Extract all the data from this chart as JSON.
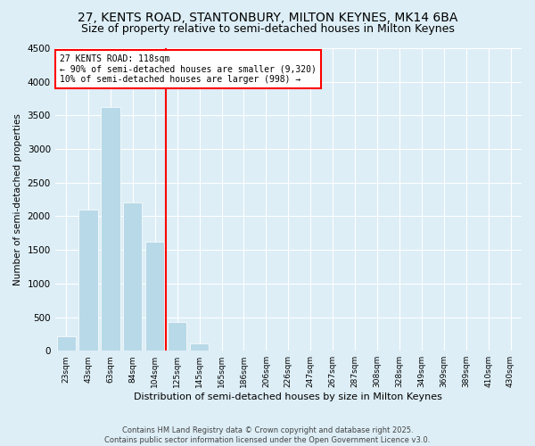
{
  "title": "27, KENTS ROAD, STANTONBURY, MILTON KEYNES, MK14 6BA",
  "subtitle": "Size of property relative to semi-detached houses in Milton Keynes",
  "xlabel": "Distribution of semi-detached houses by size in Milton Keynes",
  "ylabel": "Number of semi-detached properties",
  "categories": [
    "23sqm",
    "43sqm",
    "63sqm",
    "84sqm",
    "104sqm",
    "125sqm",
    "145sqm",
    "165sqm",
    "186sqm",
    "206sqm",
    "226sqm",
    "247sqm",
    "267sqm",
    "287sqm",
    "308sqm",
    "328sqm",
    "349sqm",
    "369sqm",
    "389sqm",
    "410sqm",
    "430sqm"
  ],
  "values": [
    220,
    2100,
    3620,
    2200,
    1620,
    430,
    110,
    0,
    0,
    0,
    0,
    0,
    0,
    0,
    0,
    0,
    0,
    0,
    0,
    0,
    0
  ],
  "bar_color": "#b8d9e8",
  "vline_x": 4.5,
  "vline_color": "red",
  "annotation_title": "27 KENTS ROAD: 118sqm",
  "annotation_line1": "← 90% of semi-detached houses are smaller (9,320)",
  "annotation_line2": "10% of semi-detached houses are larger (998) →",
  "ylim": [
    0,
    4500
  ],
  "yticks": [
    0,
    500,
    1000,
    1500,
    2000,
    2500,
    3000,
    3500,
    4000,
    4500
  ],
  "footer_line1": "Contains HM Land Registry data © Crown copyright and database right 2025.",
  "footer_line2": "Contains public sector information licensed under the Open Government Licence v3.0.",
  "bg_color": "#ddeef6",
  "plot_bg_color": "#ddeef6",
  "title_fontsize": 10,
  "subtitle_fontsize": 9
}
